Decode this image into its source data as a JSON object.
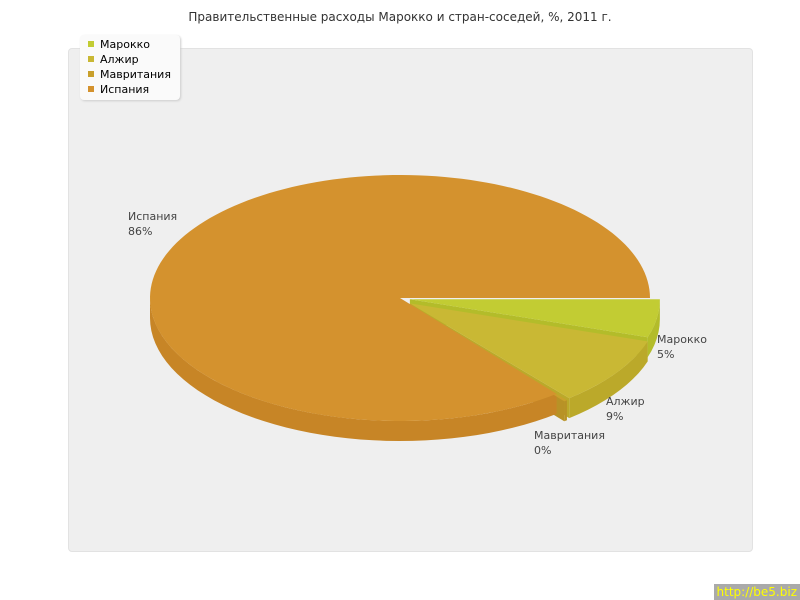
{
  "chart_data": {
    "type": "pie",
    "title": "Правительственные расходы Марокко и стран-соседей, %, 2011 г.",
    "categories": [
      "Марокко",
      "Алжир",
      "Мавритания",
      "Испания"
    ],
    "values": [
      5,
      9,
      0,
      86
    ],
    "labels": [
      "5%",
      "9%",
      "0%",
      "86%"
    ],
    "colors": [
      "#c2cc33",
      "#c9b834",
      "#c9a02c",
      "#d4922e"
    ],
    "side_colors": [
      "#b3bc2a",
      "#bba92a",
      "#b89226",
      "#c78526"
    ],
    "legend": "top-left",
    "three_d": true
  },
  "credit": "http://be5.biz"
}
